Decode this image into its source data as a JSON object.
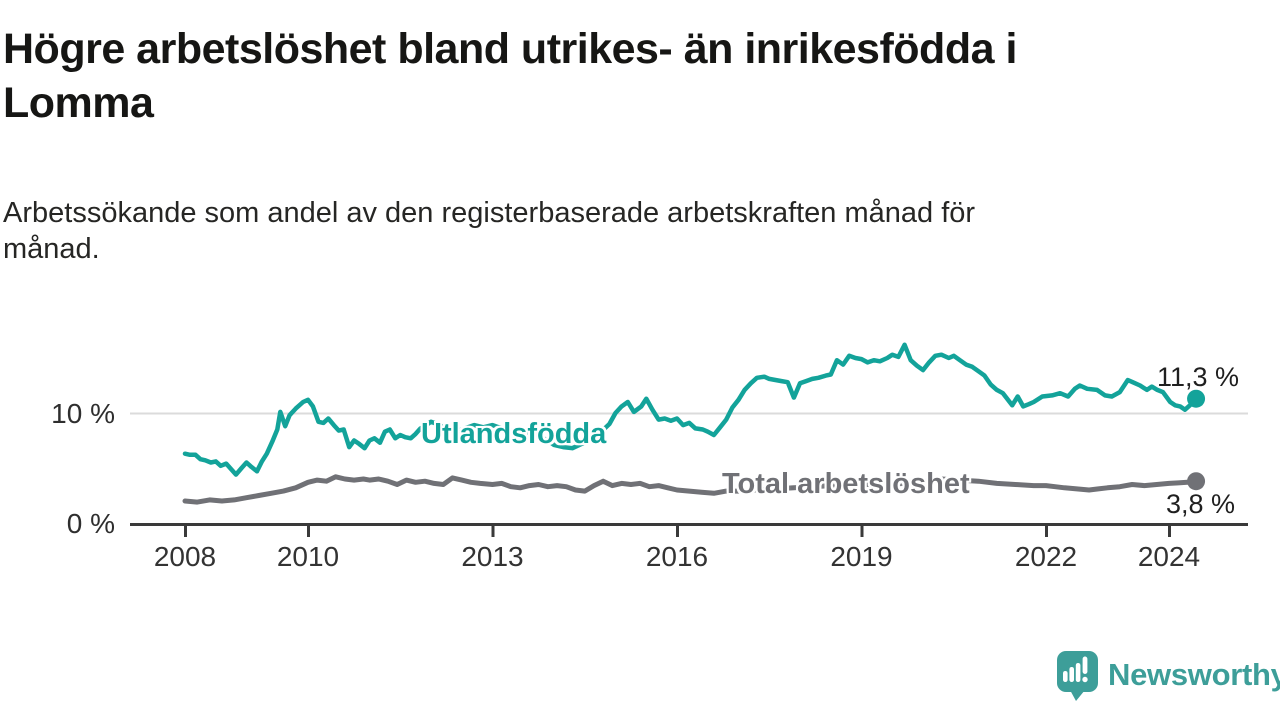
{
  "chart_data": {
    "type": "line",
    "title": "Högre arbetslöshet bland utrikes- än inrikesfödda i\nLomma",
    "subtitle": "Arbetssökande som andel av den registerbaserade arbetskraften månad för\nmånad.",
    "xlabel": "",
    "ylabel": "",
    "unit": "%",
    "xlim": [
      2008,
      2024.6
    ],
    "ylim": [
      0,
      17
    ],
    "grid": "single horizontal gridline at 10 %",
    "legend_position": "inline labels on lines",
    "x_axis": {
      "ticks": [
        2008,
        2010,
        2013,
        2016,
        2019,
        2022,
        2024
      ]
    },
    "y_axis": {
      "ticks": [
        {
          "value": 10,
          "label": "10 %"
        },
        {
          "value": 0,
          "label": "0 %"
        }
      ]
    },
    "series": [
      {
        "name": "Utlandsfödda",
        "color": "#13a39a",
        "end_value": 11.3,
        "end_label": "11,3 %",
        "points": [
          [
            2008.0,
            6.3
          ],
          [
            2008.08,
            6.2
          ],
          [
            2008.17,
            6.2
          ],
          [
            2008.25,
            5.8
          ],
          [
            2008.33,
            5.7
          ],
          [
            2008.42,
            5.5
          ],
          [
            2008.5,
            5.6
          ],
          [
            2008.58,
            5.2
          ],
          [
            2008.67,
            5.4
          ],
          [
            2008.75,
            4.9
          ],
          [
            2008.83,
            4.4
          ],
          [
            2008.92,
            5.0
          ],
          [
            2009.0,
            5.5
          ],
          [
            2009.08,
            5.1
          ],
          [
            2009.17,
            4.7
          ],
          [
            2009.25,
            5.6
          ],
          [
            2009.33,
            6.3
          ],
          [
            2009.42,
            7.4
          ],
          [
            2009.5,
            8.5
          ],
          [
            2009.55,
            10.1
          ],
          [
            2009.63,
            8.8
          ],
          [
            2009.7,
            9.8
          ],
          [
            2009.8,
            10.4
          ],
          [
            2009.92,
            11.0
          ],
          [
            2010.0,
            11.2
          ],
          [
            2010.08,
            10.6
          ],
          [
            2010.17,
            9.2
          ],
          [
            2010.25,
            9.1
          ],
          [
            2010.33,
            9.5
          ],
          [
            2010.42,
            8.9
          ],
          [
            2010.5,
            8.4
          ],
          [
            2010.58,
            8.5
          ],
          [
            2010.67,
            6.9
          ],
          [
            2010.75,
            7.5
          ],
          [
            2010.83,
            7.2
          ],
          [
            2010.92,
            6.8
          ],
          [
            2011.0,
            7.5
          ],
          [
            2011.08,
            7.7
          ],
          [
            2011.17,
            7.3
          ],
          [
            2011.25,
            8.3
          ],
          [
            2011.33,
            8.5
          ],
          [
            2011.42,
            7.7
          ],
          [
            2011.5,
            8.0
          ],
          [
            2011.58,
            7.8
          ],
          [
            2011.67,
            7.7
          ],
          [
            2011.75,
            8.1
          ],
          [
            2011.83,
            8.6
          ],
          [
            2011.92,
            8.9
          ],
          [
            2012.0,
            9.2
          ],
          [
            2012.1,
            9.0
          ],
          [
            2012.25,
            8.6
          ],
          [
            2012.4,
            8.3
          ],
          [
            2012.55,
            8.6
          ],
          [
            2012.7,
            8.9
          ],
          [
            2012.85,
            8.7
          ],
          [
            2013.0,
            8.9
          ],
          [
            2013.15,
            8.6
          ],
          [
            2013.3,
            8.4
          ],
          [
            2013.45,
            8.0
          ],
          [
            2013.6,
            8.3
          ],
          [
            2013.75,
            7.9
          ],
          [
            2013.9,
            7.5
          ],
          [
            2014.0,
            7.1
          ],
          [
            2014.15,
            6.9
          ],
          [
            2014.3,
            6.8
          ],
          [
            2014.45,
            7.2
          ],
          [
            2014.6,
            7.6
          ],
          [
            2014.75,
            8.2
          ],
          [
            2014.9,
            9.0
          ],
          [
            2015.0,
            10.0
          ],
          [
            2015.1,
            10.6
          ],
          [
            2015.2,
            11.0
          ],
          [
            2015.3,
            10.1
          ],
          [
            2015.42,
            10.6
          ],
          [
            2015.5,
            11.3
          ],
          [
            2015.6,
            10.3
          ],
          [
            2015.7,
            9.4
          ],
          [
            2015.8,
            9.5
          ],
          [
            2015.9,
            9.3
          ],
          [
            2016.0,
            9.5
          ],
          [
            2016.1,
            8.9
          ],
          [
            2016.2,
            9.1
          ],
          [
            2016.3,
            8.6
          ],
          [
            2016.42,
            8.5
          ],
          [
            2016.5,
            8.3
          ],
          [
            2016.6,
            8.0
          ],
          [
            2016.7,
            8.7
          ],
          [
            2016.8,
            9.4
          ],
          [
            2016.9,
            10.5
          ],
          [
            2017.0,
            11.2
          ],
          [
            2017.1,
            12.1
          ],
          [
            2017.2,
            12.7
          ],
          [
            2017.3,
            13.2
          ],
          [
            2017.42,
            13.3
          ],
          [
            2017.5,
            13.1
          ],
          [
            2017.6,
            13.0
          ],
          [
            2017.7,
            12.9
          ],
          [
            2017.8,
            12.8
          ],
          [
            2017.9,
            11.4
          ],
          [
            2018.0,
            12.7
          ],
          [
            2018.1,
            12.9
          ],
          [
            2018.2,
            13.1
          ],
          [
            2018.3,
            13.2
          ],
          [
            2018.42,
            13.4
          ],
          [
            2018.5,
            13.5
          ],
          [
            2018.6,
            14.8
          ],
          [
            2018.7,
            14.4
          ],
          [
            2018.8,
            15.2
          ],
          [
            2018.9,
            15.0
          ],
          [
            2019.0,
            14.9
          ],
          [
            2019.1,
            14.6
          ],
          [
            2019.2,
            14.8
          ],
          [
            2019.3,
            14.7
          ],
          [
            2019.42,
            15.0
          ],
          [
            2019.5,
            15.3
          ],
          [
            2019.6,
            15.1
          ],
          [
            2019.7,
            16.2
          ],
          [
            2019.8,
            14.8
          ],
          [
            2019.9,
            14.3
          ],
          [
            2020.0,
            13.9
          ],
          [
            2020.1,
            14.6
          ],
          [
            2020.2,
            15.2
          ],
          [
            2020.3,
            15.3
          ],
          [
            2020.42,
            15.0
          ],
          [
            2020.5,
            15.2
          ],
          [
            2020.6,
            14.8
          ],
          [
            2020.7,
            14.4
          ],
          [
            2020.8,
            14.2
          ],
          [
            2020.9,
            13.8
          ],
          [
            2021.0,
            13.4
          ],
          [
            2021.1,
            12.6
          ],
          [
            2021.2,
            12.1
          ],
          [
            2021.3,
            11.8
          ],
          [
            2021.45,
            10.7
          ],
          [
            2021.54,
            11.5
          ],
          [
            2021.63,
            10.6
          ],
          [
            2021.72,
            10.8
          ],
          [
            2021.8,
            11.0
          ],
          [
            2021.94,
            11.5
          ],
          [
            2022.1,
            11.6
          ],
          [
            2022.23,
            11.8
          ],
          [
            2022.36,
            11.5
          ],
          [
            2022.47,
            12.2
          ],
          [
            2022.55,
            12.5
          ],
          [
            2022.67,
            12.2
          ],
          [
            2022.83,
            12.1
          ],
          [
            2022.96,
            11.6
          ],
          [
            2023.07,
            11.5
          ],
          [
            2023.2,
            11.9
          ],
          [
            2023.33,
            13.0
          ],
          [
            2023.41,
            12.8
          ],
          [
            2023.53,
            12.5
          ],
          [
            2023.64,
            12.1
          ],
          [
            2023.72,
            12.4
          ],
          [
            2023.81,
            12.1
          ],
          [
            2023.9,
            11.9
          ],
          [
            2024.02,
            11.0
          ],
          [
            2024.1,
            10.7
          ],
          [
            2024.18,
            10.6
          ],
          [
            2024.26,
            10.3
          ],
          [
            2024.34,
            10.7
          ],
          [
            2024.44,
            11.3
          ]
        ]
      },
      {
        "name": "Total arbetslöshet",
        "color": "#707176",
        "end_value": 3.8,
        "end_label": "3,8 %",
        "points": [
          [
            2008.0,
            2.0
          ],
          [
            2008.2,
            1.9
          ],
          [
            2008.4,
            2.1
          ],
          [
            2008.6,
            2.0
          ],
          [
            2008.8,
            2.1
          ],
          [
            2009.0,
            2.3
          ],
          [
            2009.2,
            2.5
          ],
          [
            2009.4,
            2.7
          ],
          [
            2009.6,
            2.9
          ],
          [
            2009.8,
            3.2
          ],
          [
            2010.0,
            3.7
          ],
          [
            2010.15,
            3.9
          ],
          [
            2010.3,
            3.8
          ],
          [
            2010.45,
            4.2
          ],
          [
            2010.6,
            4.0
          ],
          [
            2010.75,
            3.9
          ],
          [
            2010.9,
            4.0
          ],
          [
            2011.0,
            3.9
          ],
          [
            2011.15,
            4.0
          ],
          [
            2011.3,
            3.8
          ],
          [
            2011.45,
            3.5
          ],
          [
            2011.6,
            3.9
          ],
          [
            2011.75,
            3.7
          ],
          [
            2011.9,
            3.8
          ],
          [
            2012.05,
            3.6
          ],
          [
            2012.2,
            3.5
          ],
          [
            2012.35,
            4.1
          ],
          [
            2012.5,
            3.9
          ],
          [
            2012.65,
            3.7
          ],
          [
            2012.8,
            3.6
          ],
          [
            2013.0,
            3.5
          ],
          [
            2013.15,
            3.6
          ],
          [
            2013.3,
            3.3
          ],
          [
            2013.45,
            3.2
          ],
          [
            2013.6,
            3.4
          ],
          [
            2013.75,
            3.5
          ],
          [
            2013.9,
            3.3
          ],
          [
            2014.05,
            3.4
          ],
          [
            2014.2,
            3.3
          ],
          [
            2014.35,
            3.0
          ],
          [
            2014.5,
            2.9
          ],
          [
            2014.65,
            3.4
          ],
          [
            2014.8,
            3.8
          ],
          [
            2014.95,
            3.4
          ],
          [
            2015.1,
            3.6
          ],
          [
            2015.25,
            3.5
          ],
          [
            2015.4,
            3.6
          ],
          [
            2015.55,
            3.3
          ],
          [
            2015.7,
            3.4
          ],
          [
            2015.85,
            3.2
          ],
          [
            2016.0,
            3.0
          ],
          [
            2016.2,
            2.9
          ],
          [
            2016.4,
            2.8
          ],
          [
            2016.6,
            2.7
          ],
          [
            2016.8,
            2.9
          ],
          [
            2017.0,
            2.9
          ],
          [
            2017.3,
            3.0
          ],
          [
            2017.6,
            3.1
          ],
          [
            2017.9,
            3.2
          ],
          [
            2018.2,
            3.3
          ],
          [
            2018.5,
            3.4
          ],
          [
            2018.8,
            3.4
          ],
          [
            2019.1,
            3.5
          ],
          [
            2019.4,
            3.5
          ],
          [
            2019.7,
            3.6
          ],
          [
            2020.0,
            3.8
          ],
          [
            2020.3,
            4.0
          ],
          [
            2020.6,
            3.9
          ],
          [
            2020.9,
            3.8
          ],
          [
            2021.2,
            3.6
          ],
          [
            2021.5,
            3.5
          ],
          [
            2021.8,
            3.4
          ],
          [
            2022.0,
            3.4
          ],
          [
            2022.15,
            3.3
          ],
          [
            2022.3,
            3.2
          ],
          [
            2022.5,
            3.1
          ],
          [
            2022.7,
            3.0
          ],
          [
            2022.85,
            3.1
          ],
          [
            2023.0,
            3.2
          ],
          [
            2023.2,
            3.3
          ],
          [
            2023.4,
            3.5
          ],
          [
            2023.6,
            3.4
          ],
          [
            2023.8,
            3.5
          ],
          [
            2024.0,
            3.6
          ],
          [
            2024.15,
            3.65
          ],
          [
            2024.3,
            3.7
          ],
          [
            2024.44,
            3.8
          ]
        ]
      }
    ],
    "colors": {
      "accent_teal": "#13a39a",
      "line_gray": "#707176",
      "axis": "#3a3a3a",
      "gridline": "#dbdbdb"
    }
  },
  "branding": {
    "logo_icon": "newsworthy-speech-bubble-chart-icon",
    "text": "Newsworthy",
    "color": "#3d9e99"
  }
}
